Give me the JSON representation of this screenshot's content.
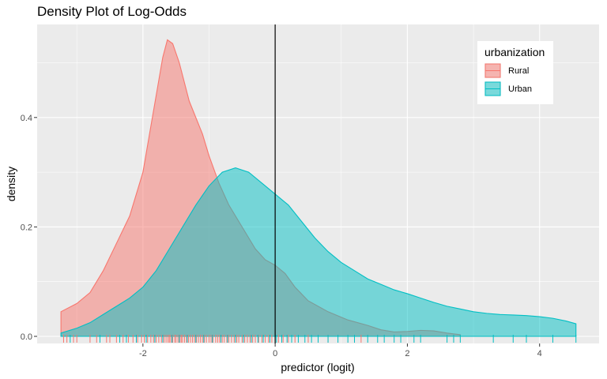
{
  "chart_data": {
    "type": "area",
    "title": "Density Plot of Log-Odds",
    "xlabel": "predictor (logit)",
    "ylabel": "density",
    "xlim": [
      -3.6,
      4.9
    ],
    "ylim": [
      -0.013,
      0.57
    ],
    "x_ticks": [
      -2,
      0,
      2,
      4
    ],
    "x_tick_labels": [
      "-2",
      "0",
      "2",
      "4"
    ],
    "y_ticks": [
      0.0,
      0.2,
      0.4
    ],
    "y_tick_labels": [
      "0.0",
      "0.2",
      "0.4"
    ],
    "grid": true,
    "vline_x": 0,
    "legend": {
      "title": "urbanization",
      "position": "top-right"
    },
    "series": [
      {
        "name": "Rural",
        "line_color": "#F8766D",
        "fill_color": "#F8766D",
        "x": [
          -3.24,
          -3.0,
          -2.8,
          -2.6,
          -2.4,
          -2.2,
          -2.0,
          -1.9,
          -1.8,
          -1.7,
          -1.63,
          -1.55,
          -1.45,
          -1.3,
          -1.1,
          -1.0,
          -0.85,
          -0.7,
          -0.5,
          -0.3,
          -0.15,
          0.0,
          0.15,
          0.3,
          0.5,
          0.8,
          1.1,
          1.4,
          1.6,
          1.8,
          2.0,
          2.2,
          2.4,
          2.6,
          2.8
        ],
        "y": [
          0.045,
          0.06,
          0.08,
          0.12,
          0.17,
          0.22,
          0.3,
          0.37,
          0.44,
          0.51,
          0.542,
          0.535,
          0.5,
          0.43,
          0.37,
          0.33,
          0.28,
          0.24,
          0.2,
          0.16,
          0.14,
          0.13,
          0.115,
          0.09,
          0.065,
          0.045,
          0.03,
          0.02,
          0.012,
          0.008,
          0.009,
          0.011,
          0.01,
          0.006,
          0.003
        ]
      },
      {
        "name": "Urban",
        "line_color": "#00BFC4",
        "fill_color": "#00BFC4",
        "x": [
          -3.24,
          -3.0,
          -2.8,
          -2.6,
          -2.4,
          -2.2,
          -2.0,
          -1.8,
          -1.6,
          -1.4,
          -1.2,
          -1.0,
          -0.8,
          -0.6,
          -0.4,
          -0.2,
          0.0,
          0.2,
          0.4,
          0.6,
          0.8,
          1.0,
          1.2,
          1.4,
          1.6,
          1.8,
          2.0,
          2.2,
          2.4,
          2.6,
          2.8,
          3.0,
          3.2,
          3.4,
          3.6,
          3.8,
          4.0,
          4.2,
          4.4,
          4.55
        ],
        "y": [
          0.006,
          0.015,
          0.025,
          0.04,
          0.055,
          0.07,
          0.09,
          0.12,
          0.16,
          0.2,
          0.24,
          0.275,
          0.3,
          0.308,
          0.3,
          0.28,
          0.26,
          0.24,
          0.21,
          0.18,
          0.155,
          0.135,
          0.12,
          0.105,
          0.095,
          0.085,
          0.078,
          0.07,
          0.062,
          0.055,
          0.05,
          0.045,
          0.042,
          0.04,
          0.039,
          0.038,
          0.036,
          0.033,
          0.028,
          0.023
        ]
      }
    ],
    "rug": {
      "Rural": [
        -3.2,
        -3.15,
        -3.05,
        -3.0,
        -2.8,
        -2.7,
        -2.55,
        -2.5,
        -2.4,
        -2.3,
        -2.22,
        -2.15,
        -2.08,
        -2.02,
        -1.98,
        -1.93,
        -1.88,
        -1.84,
        -1.8,
        -1.76,
        -1.72,
        -1.68,
        -1.65,
        -1.62,
        -1.6,
        -1.58,
        -1.55,
        -1.52,
        -1.5,
        -1.47,
        -1.44,
        -1.42,
        -1.4,
        -1.37,
        -1.34,
        -1.31,
        -1.28,
        -1.25,
        -1.22,
        -1.19,
        -1.16,
        -1.13,
        -1.1,
        -1.07,
        -1.04,
        -1.0,
        -0.97,
        -0.94,
        -0.9,
        -0.87,
        -0.84,
        -0.8,
        -0.77,
        -0.73,
        -0.7,
        -0.66,
        -0.62,
        -0.58,
        -0.55,
        -0.5,
        -0.46,
        -0.42,
        -0.38,
        -0.34,
        -0.3,
        -0.25,
        -0.2,
        -0.15,
        -0.1,
        -0.05,
        0.05,
        0.12,
        0.2,
        0.3,
        0.5,
        0.8,
        1.3
      ],
      "Urban": [
        -3.1,
        -2.65,
        -2.35,
        -2.25,
        -2.1,
        -1.95,
        -1.82,
        -1.7,
        -1.56,
        -1.45,
        -1.33,
        -1.2,
        -1.08,
        -0.95,
        -0.82,
        -0.72,
        -0.6,
        -0.48,
        -0.36,
        -0.26,
        -0.18,
        -0.08,
        0.02,
        0.1,
        0.18,
        0.25,
        0.35,
        0.45,
        0.55,
        0.65,
        0.8,
        0.95,
        1.1,
        1.2,
        1.4,
        1.55,
        1.65,
        1.8,
        1.9,
        2.1,
        2.2,
        2.6,
        2.7,
        2.8,
        3.3,
        3.6,
        3.8,
        4.2,
        4.55
      ]
    }
  }
}
